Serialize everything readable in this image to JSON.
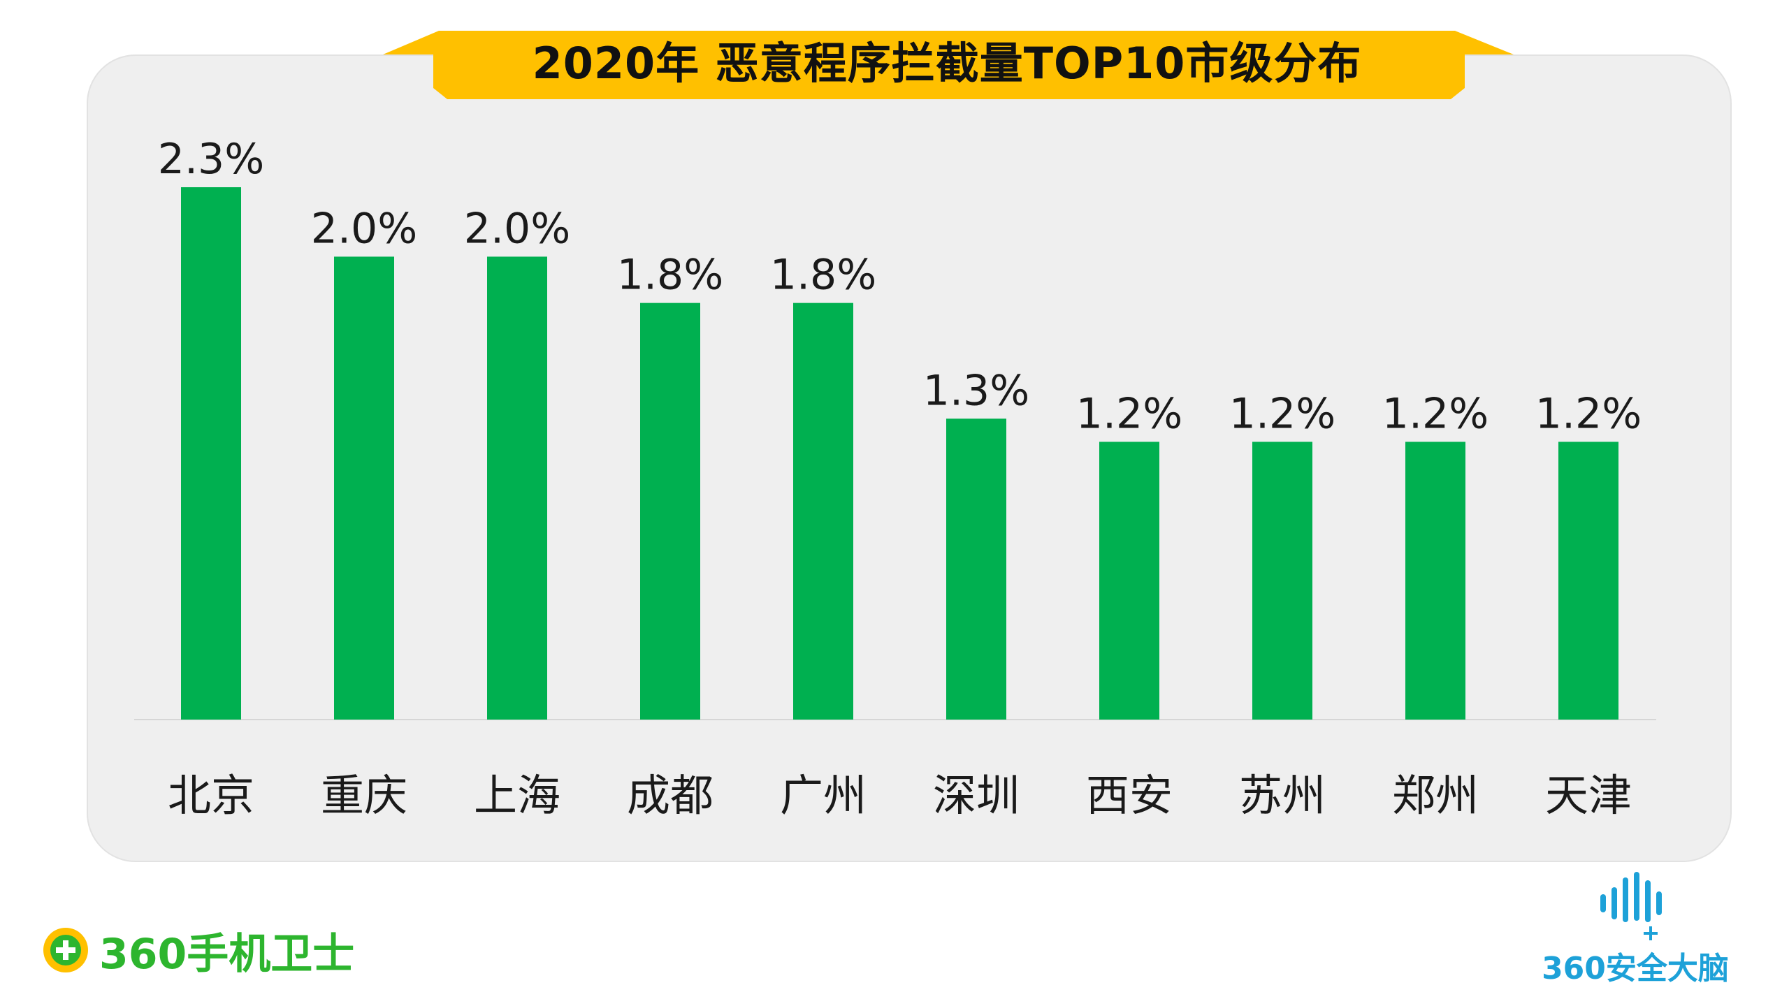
{
  "chart_data": {
    "type": "bar",
    "title": "2020年 恶意程序拦截量TOP10市级分布",
    "categories": [
      "北京",
      "重庆",
      "上海",
      "成都",
      "广州",
      "深圳",
      "西安",
      "苏州",
      "郑州",
      "天津"
    ],
    "values": [
      2.3,
      2.0,
      2.0,
      1.8,
      1.8,
      1.3,
      1.2,
      1.2,
      1.2,
      1.2
    ],
    "value_labels": [
      "2.3%",
      "2.0%",
      "2.0%",
      "1.8%",
      "1.8%",
      "1.3%",
      "1.2%",
      "1.2%",
      "1.2%",
      "1.2%"
    ],
    "unit": "%",
    "ylim": [
      0,
      2.3
    ],
    "grid": false,
    "legend": "none",
    "xlabel": "",
    "ylabel": "",
    "colors": {
      "bar": "#00b050",
      "title_banner": "#ffc000",
      "panel": "#efefef"
    }
  },
  "branding": {
    "left_logo": "360手机卫士",
    "right_logo": "360安全大脑",
    "left_logo_color": "#2db52e",
    "right_logo_color": "#1da1d8"
  }
}
